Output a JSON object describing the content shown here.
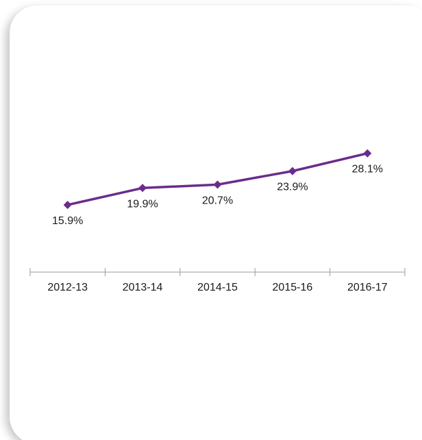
{
  "chart_data": {
    "type": "line",
    "title": "",
    "xlabel": "",
    "ylabel": "",
    "categories": [
      "2012-13",
      "2013-14",
      "2014-15",
      "2015-16",
      "2016-17"
    ],
    "series": [
      {
        "values": [
          15.9,
          19.9,
          20.7,
          23.9,
          28.1
        ],
        "labels": [
          "15.9%",
          "19.9%",
          "20.7%",
          "23.9%",
          "28.1%"
        ],
        "color": "#6a2c8c",
        "marker": "diamond"
      }
    ],
    "ylim": [
      0,
      60
    ],
    "grid": false,
    "legend": "none",
    "axis_color": "#999999"
  }
}
